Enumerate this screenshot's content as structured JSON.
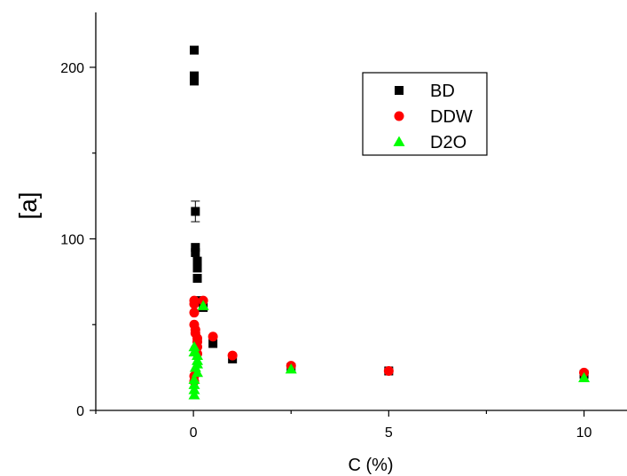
{
  "chart_data": {
    "type": "scatter",
    "xlabel": "C (%)",
    "ylabel": "[a]",
    "xlim": [
      -2.5,
      11.1
    ],
    "ylim": [
      0,
      232
    ],
    "xticks": [
      0,
      5,
      10
    ],
    "yticks": [
      0,
      100,
      200
    ],
    "legend_position": "top-right",
    "grid": false,
    "series": [
      {
        "name": "BD",
        "marker": "square",
        "color": "#000000",
        "points": [
          {
            "x": 0.02,
            "y": 210
          },
          {
            "x": 0.02,
            "y": 195
          },
          {
            "x": 0.02,
            "y": 192
          },
          {
            "x": 0.05,
            "y": 116,
            "err": 6
          },
          {
            "x": 0.05,
            "y": 95
          },
          {
            "x": 0.05,
            "y": 92
          },
          {
            "x": 0.1,
            "y": 87
          },
          {
            "x": 0.1,
            "y": 83
          },
          {
            "x": 0.1,
            "y": 77
          },
          {
            "x": 0.1,
            "y": 64
          },
          {
            "x": 0.25,
            "y": 60
          },
          {
            "x": 0.5,
            "y": 39
          },
          {
            "x": 1,
            "y": 30
          },
          {
            "x": 2.5,
            "y": 25
          },
          {
            "x": 5,
            "y": 23
          },
          {
            "x": 10,
            "y": 21
          }
        ]
      },
      {
        "name": "DDW",
        "marker": "circle",
        "color": "#ff0000",
        "points": [
          {
            "x": 0.02,
            "y": 64
          },
          {
            "x": 0.02,
            "y": 62
          },
          {
            "x": 0.02,
            "y": 57
          },
          {
            "x": 0.02,
            "y": 50
          },
          {
            "x": 0.05,
            "y": 47
          },
          {
            "x": 0.05,
            "y": 45
          },
          {
            "x": 0.1,
            "y": 42
          },
          {
            "x": 0.1,
            "y": 40
          },
          {
            "x": 0.1,
            "y": 37
          },
          {
            "x": 0.05,
            "y": 36
          },
          {
            "x": 0.1,
            "y": 33
          },
          {
            "x": 0.02,
            "y": 20
          },
          {
            "x": 0.02,
            "y": 17
          },
          {
            "x": 0.25,
            "y": 64
          },
          {
            "x": 0.5,
            "y": 43
          },
          {
            "x": 1,
            "y": 32
          },
          {
            "x": 2.5,
            "y": 26
          },
          {
            "x": 5,
            "y": 23
          },
          {
            "x": 10,
            "y": 22
          }
        ]
      },
      {
        "name": "D2O",
        "marker": "triangle",
        "color": "#00ff00",
        "points": [
          {
            "x": 0.25,
            "y": 61
          },
          {
            "x": 0.02,
            "y": 37
          },
          {
            "x": 0.02,
            "y": 34
          },
          {
            "x": 0.1,
            "y": 32
          },
          {
            "x": 0.1,
            "y": 29
          },
          {
            "x": 0.1,
            "y": 27
          },
          {
            "x": 0.05,
            "y": 25
          },
          {
            "x": 0.1,
            "y": 22
          },
          {
            "x": 0.02,
            "y": 18
          },
          {
            "x": 0.02,
            "y": 15
          },
          {
            "x": 0.02,
            "y": 12
          },
          {
            "x": 0.02,
            "y": 9
          },
          {
            "x": 2.5,
            "y": 24
          },
          {
            "x": 10,
            "y": 19
          }
        ]
      }
    ]
  }
}
